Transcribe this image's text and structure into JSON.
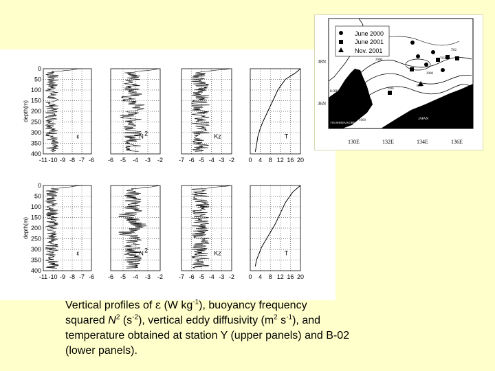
{
  "caption": {
    "p1": " Vertical profiles of  ",
    "epsilon": "ε",
    "p2": "  (W kg",
    "s1": "-1",
    "p3": "), buoyancy frequency",
    "p4": "squared ",
    "n": "N",
    "s2": "2",
    "p5": " (s",
    "s3": "-2",
    "p6": "), vertical eddy diffusivity  (m",
    "s4": "2",
    "p7": " s",
    "s5": "-1",
    "p8": "), and",
    "p9": "temperature obtained at station Y (upper panels) and B-02",
    "p10": "(lower panels)."
  },
  "figure": {
    "depth_label": "depth(m)",
    "depth_ticks": [
      "0",
      "50",
      "100",
      "150",
      "200",
      "250",
      "300",
      "350",
      "400"
    ],
    "eps_ticks": [
      "-11",
      "-10",
      "-9",
      "-8",
      "-7",
      "-6"
    ],
    "n2_ticks": [
      "-6",
      "-5",
      "-4",
      "-3",
      "-2"
    ],
    "kz_ticks": [
      "-7",
      "-6",
      "-5",
      "-4",
      "-3",
      "-2"
    ],
    "t_ticks": [
      "0",
      "4",
      "8",
      "12",
      "16",
      "20"
    ],
    "label_eps": "ε",
    "label_n2": "N",
    "label_n2_sup": "2",
    "label_kz": "Kz",
    "label_t": "T"
  },
  "map": {
    "legend": [
      {
        "label": "June 2000",
        "marker": "circle"
      },
      {
        "label": "June 2001",
        "marker": "square"
      },
      {
        "label": "Nov. 2001",
        "marker": "triangle"
      }
    ],
    "lat_labels": [
      "38N",
      "36N"
    ],
    "lon_labels": [
      "130E",
      "132E",
      "134E",
      "136E"
    ],
    "place_labels": {
      "korea": "KOREA",
      "japan": "JAPAN",
      "strait": "TSUSHIMA/KOREA STRAIT"
    },
    "contour_labels": [
      "2000",
      "1000",
      "500",
      "2000"
    ],
    "station_labels": [
      "T02",
      "T03",
      "D06",
      "Nov01",
      "B02"
    ]
  },
  "chart_data": [
    {
      "type": "line",
      "panel": "upper-epsilon",
      "xlim": [
        -11,
        -6
      ],
      "ylim": [
        0,
        400
      ]
    },
    {
      "type": "line",
      "panel": "upper-N2",
      "xlim": [
        -6,
        -2
      ],
      "ylim": [
        0,
        400
      ]
    },
    {
      "type": "line",
      "panel": "upper-Kz",
      "xlim": [
        -7,
        -2
      ],
      "ylim": [
        0,
        400
      ]
    },
    {
      "type": "line",
      "panel": "upper-T",
      "xlim": [
        0,
        20
      ],
      "ylim": [
        0,
        400
      ],
      "x": [
        20,
        18,
        14,
        11,
        9,
        7,
        5,
        4,
        3,
        2.5,
        2
      ],
      "y": [
        0,
        20,
        50,
        100,
        150,
        200,
        250,
        280,
        320,
        360,
        390
      ]
    },
    {
      "type": "line",
      "panel": "lower-epsilon",
      "xlim": [
        -11,
        -6
      ],
      "ylim": [
        0,
        400
      ]
    },
    {
      "type": "line",
      "panel": "lower-N2",
      "xlim": [
        -6,
        -2
      ],
      "ylim": [
        0,
        400
      ]
    },
    {
      "type": "line",
      "panel": "lower-Kz",
      "xlim": [
        -7,
        -2
      ],
      "ylim": [
        0,
        400
      ]
    },
    {
      "type": "line",
      "panel": "lower-T",
      "xlim": [
        0,
        20
      ],
      "ylim": [
        0,
        400
      ],
      "x": [
        20,
        17,
        14,
        12,
        10,
        8,
        6,
        4.5,
        3.5,
        2.5,
        2
      ],
      "y": [
        0,
        30,
        80,
        130,
        180,
        220,
        260,
        290,
        320,
        350,
        380
      ]
    }
  ]
}
